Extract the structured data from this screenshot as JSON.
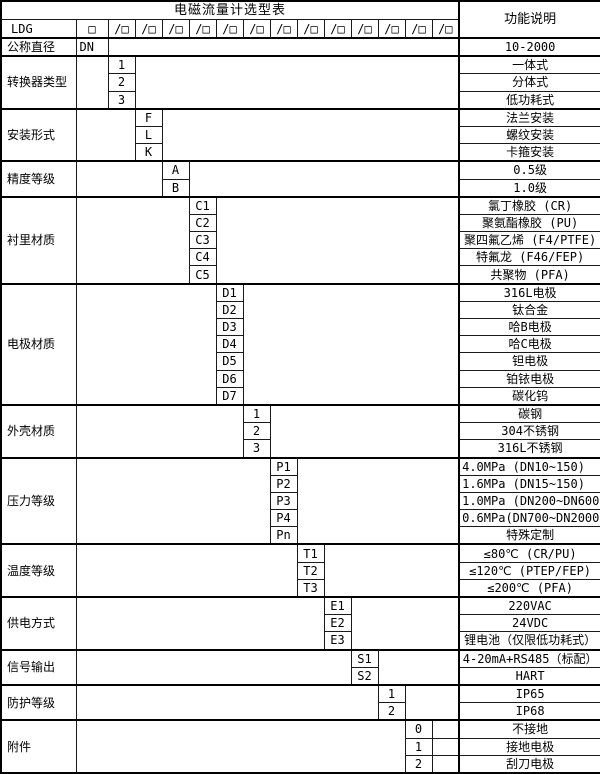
{
  "title": "电磁流量计选型表",
  "function_header": "功能说明",
  "model_row": {
    "label": "LDG",
    "first_box": "□",
    "slot": "/□",
    "slot_count": 13
  },
  "groups": [
    {
      "label": "公称直径",
      "type": "dn",
      "rows": [
        {
          "code": "DN",
          "desc": "10-2000"
        }
      ]
    },
    {
      "label": "转换器类型",
      "col": 1,
      "rows": [
        {
          "code": "1",
          "desc": "一体式"
        },
        {
          "code": "2",
          "desc": "分体式"
        },
        {
          "code": "3",
          "desc": "低功耗式"
        }
      ]
    },
    {
      "label": "安装形式",
      "col": 2,
      "rows": [
        {
          "code": "F",
          "desc": "法兰安装"
        },
        {
          "code": "L",
          "desc": "螺纹安装"
        },
        {
          "code": "K",
          "desc": "卡箍安装"
        }
      ]
    },
    {
      "label": "精度等级",
      "col": 3,
      "rows": [
        {
          "code": "A",
          "desc": "0.5级"
        },
        {
          "code": "B",
          "desc": "1.0级"
        }
      ]
    },
    {
      "label": "衬里材质",
      "col": 4,
      "rows": [
        {
          "code": "C1",
          "desc": "氯丁橡胶 (CR)"
        },
        {
          "code": "C2",
          "desc": "聚氨酯橡胶 (PU)"
        },
        {
          "code": "C3",
          "desc": "聚四氟乙烯 (F4/PTFE)"
        },
        {
          "code": "C4",
          "desc": "特氟龙 (F46/FEP)"
        },
        {
          "code": "C5",
          "desc": "共聚物 (PFA)"
        }
      ]
    },
    {
      "label": "电极材质",
      "col": 5,
      "rows": [
        {
          "code": "D1",
          "desc": "316L电极"
        },
        {
          "code": "D2",
          "desc": "钛合金"
        },
        {
          "code": "D3",
          "desc": "哈B电极"
        },
        {
          "code": "D4",
          "desc": "哈C电极"
        },
        {
          "code": "D5",
          "desc": "钽电极"
        },
        {
          "code": "D6",
          "desc": "铂铱电极"
        },
        {
          "code": "D7",
          "desc": "碳化钨"
        }
      ]
    },
    {
      "label": "外壳材质",
      "col": 6,
      "rows": [
        {
          "code": "1",
          "desc": "碳钢"
        },
        {
          "code": "2",
          "desc": "304不锈钢"
        },
        {
          "code": "3",
          "desc": "316L不锈钢"
        }
      ]
    },
    {
      "label": "压力等级",
      "col": 7,
      "rows": [
        {
          "code": "P1",
          "desc": "4.0MPa (DN10~150)",
          "align": "left"
        },
        {
          "code": "P2",
          "desc": "1.6MPa (DN15~150)",
          "align": "left"
        },
        {
          "code": "P3",
          "desc": "1.0MPa (DN200~DN600)",
          "align": "left"
        },
        {
          "code": "P4",
          "desc": "0.6MPa(DN700~DN2000)",
          "align": "left"
        },
        {
          "code": "Pn",
          "desc": "特殊定制"
        }
      ]
    },
    {
      "label": "温度等级",
      "col": 8,
      "rows": [
        {
          "code": "T1",
          "desc": "≤80℃ (CR/PU)"
        },
        {
          "code": "T2",
          "desc": "≤120℃ (PTEP/FEP)"
        },
        {
          "code": "T3",
          "desc": "≤200℃ (PFA)"
        }
      ]
    },
    {
      "label": "供电方式",
      "col": 9,
      "rows": [
        {
          "code": "E1",
          "desc": "220VAC"
        },
        {
          "code": "E2",
          "desc": "24VDC"
        },
        {
          "code": "E3",
          "desc": "锂电池（仅限低功耗式）"
        }
      ]
    },
    {
      "label": "信号输出",
      "col": 10,
      "rows": [
        {
          "code": "S1",
          "desc": "4-20mA+RS485（标配）"
        },
        {
          "code": "S2",
          "desc": "HART"
        }
      ]
    },
    {
      "label": "防护等级",
      "col": 11,
      "rows": [
        {
          "code": "1",
          "desc": "IP65"
        },
        {
          "code": "2",
          "desc": "IP68"
        }
      ]
    },
    {
      "label": "附件",
      "col": 12,
      "right_per_row": true,
      "rows": [
        {
          "code": "0",
          "desc": "不接地"
        },
        {
          "code": "1",
          "desc": "接地电极"
        },
        {
          "code": "2",
          "desc": "刮刀电极"
        }
      ]
    }
  ]
}
